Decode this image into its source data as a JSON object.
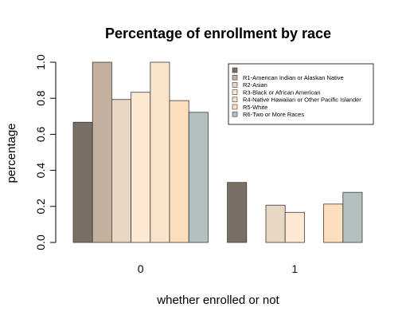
{
  "chart_data": {
    "type": "bar",
    "title": "Percentage of enrollment by race",
    "xlabel": "whether enrolled or not",
    "ylabel": "percentage",
    "categories": [
      "0",
      "1"
    ],
    "ylim": [
      0,
      1
    ],
    "yticks": [
      "0.0",
      "0.2",
      "0.4",
      "0.6",
      "0.8",
      "1.0"
    ],
    "legend_position": "top-right",
    "series": [
      {
        "name": "",
        "color": "#7a6f63",
        "values": [
          0.667,
          0.333
        ]
      },
      {
        "name": "R1-American Indian or Alaskan Native",
        "color": "#c3b09d",
        "values": [
          1.0,
          0.0
        ]
      },
      {
        "name": "R2-Asian",
        "color": "#e7d7c3",
        "values": [
          0.793,
          0.207
        ]
      },
      {
        "name": "R3-Black or African American",
        "color": "#fde9d2",
        "values": [
          0.833,
          0.167
        ]
      },
      {
        "name": "R4-Native Hawaiian or Other Pacific Islander",
        "color": "#f8e3cb",
        "values": [
          1.0,
          0.0
        ]
      },
      {
        "name": "R5-White",
        "color": "#fddfbc",
        "values": [
          0.787,
          0.213
        ]
      },
      {
        "name": "R6-Two or More Races",
        "color": "#b2c1c0",
        "values": [
          0.722,
          0.278
        ]
      }
    ]
  }
}
